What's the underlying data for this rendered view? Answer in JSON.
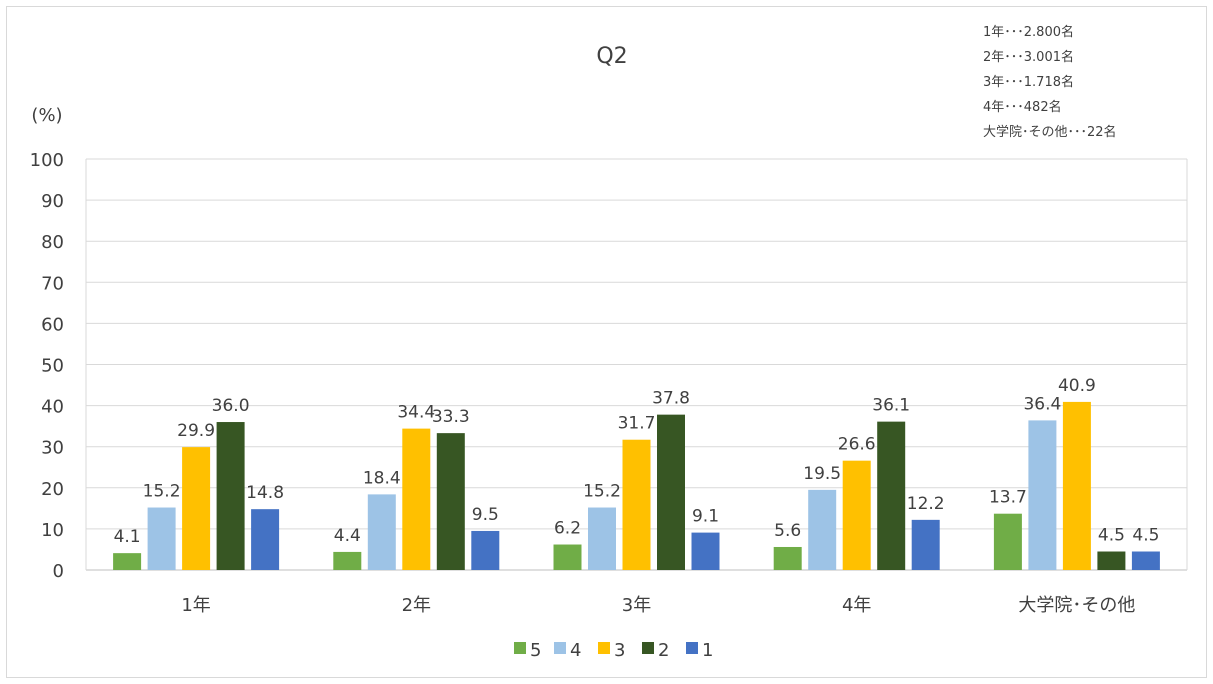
{
  "chart_data": {
    "type": "bar",
    "title": "Q2",
    "ylabel": "(%)",
    "xlabel": "",
    "ylim": [
      0,
      100
    ],
    "ytick_step": 10,
    "grid": true,
    "legend_position": "bottom",
    "categories": [
      "1年",
      "2年",
      "3年",
      "4年",
      "大学院･その他"
    ],
    "series": [
      {
        "name": "5",
        "color": "#70ad47",
        "values": [
          4.1,
          4.4,
          6.2,
          5.6,
          13.7
        ]
      },
      {
        "name": "4",
        "color": "#9dc3e6",
        "values": [
          15.2,
          18.4,
          15.2,
          19.5,
          36.4
        ]
      },
      {
        "name": "3",
        "color": "#ffc000",
        "values": [
          29.9,
          34.4,
          31.7,
          26.6,
          40.9
        ]
      },
      {
        "name": "2",
        "color": "#375623",
        "values": [
          36.0,
          33.3,
          37.8,
          36.1,
          4.5
        ]
      },
      {
        "name": "1",
        "color": "#4472c4",
        "values": [
          14.8,
          9.5,
          9.1,
          12.2,
          4.5
        ]
      }
    ],
    "annotations": [
      "1年･･･2.800名",
      "2年･･･3.001名",
      "3年･･･1.718名",
      "4年･･･482名",
      "大学院･その他･･･22名"
    ]
  }
}
